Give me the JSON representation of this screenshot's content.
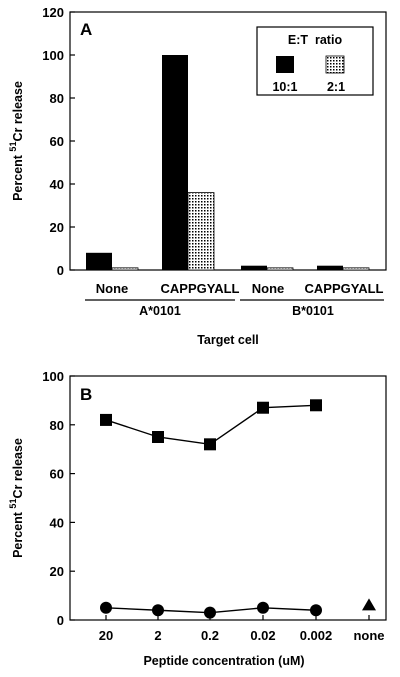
{
  "chart_data": [
    {
      "type": "bar",
      "panel_label": "A",
      "ylabel": "Percent 51Cr release",
      "ylabel_superscript": "51",
      "ylabel_main": "Cr release",
      "ylabel_prefix": "Percent",
      "xlabel": "Target cell",
      "ylim": [
        0,
        120
      ],
      "yticks": [
        "0",
        "20",
        "40",
        "60",
        "80",
        "100",
        "120"
      ],
      "categories": [
        "None",
        "CAPPGYALL",
        "None",
        "CAPPGYALL"
      ],
      "groups": [
        {
          "label": "A*0101",
          "categories": [
            "None",
            "CAPPGYALL"
          ]
        },
        {
          "label": "B*0101",
          "categories": [
            "None",
            "CAPPGYALL"
          ]
        }
      ],
      "legend": {
        "title": "E:T  ratio",
        "position": "top-right"
      },
      "series": [
        {
          "name": "10:1",
          "fill": "#000000",
          "values": [
            8,
            100,
            2,
            2
          ]
        },
        {
          "name": "2:1",
          "fill": "dotted",
          "values": [
            1,
            36,
            1,
            1
          ]
        }
      ]
    },
    {
      "type": "line",
      "panel_label": "B",
      "ylabel": "Percent 51Cr release",
      "ylabel_superscript": "51",
      "ylabel_main": "Cr release",
      "ylabel_prefix": "Percent",
      "xlabel": "Peptide concentration (uM)",
      "ylim": [
        0,
        100
      ],
      "yticks": [
        "0",
        "20",
        "40",
        "60",
        "80",
        "100"
      ],
      "categories": [
        "20",
        "2",
        "0.2",
        "0.02",
        "0.002",
        "none"
      ],
      "series": [
        {
          "marker": "square",
          "values": [
            82,
            75,
            72,
            87,
            88,
            null
          ]
        },
        {
          "marker": "circle",
          "values": [
            5,
            4,
            3,
            5,
            4,
            null
          ]
        },
        {
          "marker": "triangle",
          "values": [
            null,
            null,
            null,
            null,
            null,
            6
          ]
        }
      ]
    }
  ]
}
